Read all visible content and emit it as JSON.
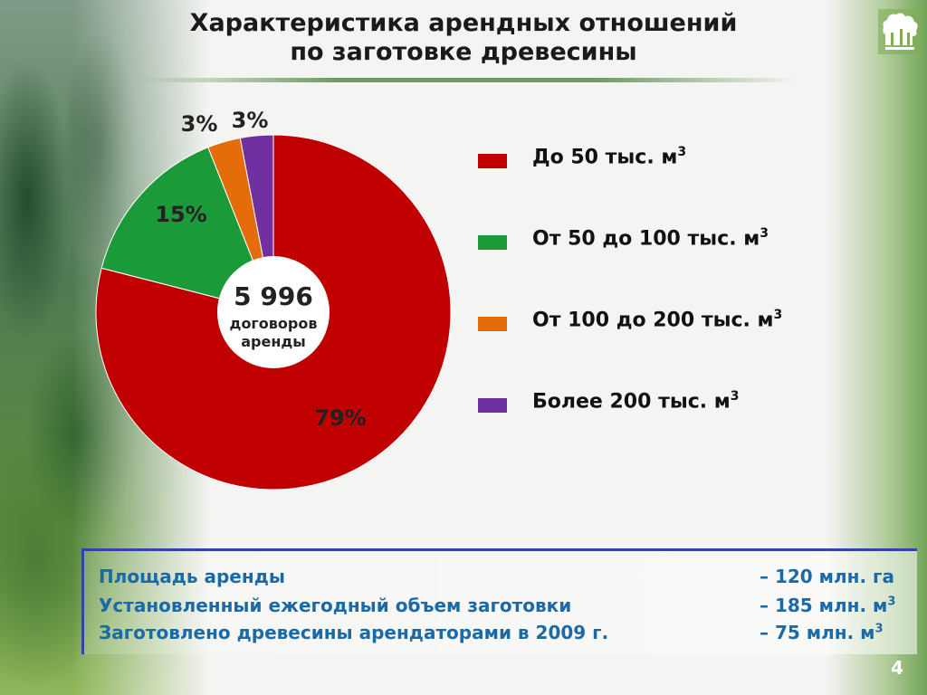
{
  "slide": {
    "title_line1": "Характеристика арендных отношений",
    "title_line2": "по заготовке древесины",
    "page_number": "4"
  },
  "chart_data": {
    "type": "pie",
    "values": [
      79,
      15,
      3,
      3
    ],
    "data_labels": [
      "79%",
      "15%",
      "3%",
      "3%"
    ],
    "colors": [
      "#c00000",
      "#1a9a38",
      "#e46c0a",
      "#7030a0"
    ],
    "center_number": "5 996",
    "center_line1": "договоров",
    "center_line2": "аренды"
  },
  "legend": [
    {
      "label": "До 50 тыс. м",
      "sup": "3",
      "color": "#c00000"
    },
    {
      "label": "От 50 до 100 тыс. м",
      "sup": "3",
      "color": "#1a9a38"
    },
    {
      "label": "От 100 до 200 тыс. м",
      "sup": "3",
      "color": "#e46c0a"
    },
    {
      "label": "Более 200 тыс. м",
      "sup": "3",
      "color": "#7030a0"
    }
  ],
  "info": [
    {
      "label": "Площадь аренды",
      "value": "– 120 млн. га",
      "sup": ""
    },
    {
      "label": "Установленный ежегодный объем заготовки",
      "value": "– 185 млн. м",
      "sup": "3"
    },
    {
      "label": "Заготовлено древесины арендаторами в 2009 г.",
      "value": "– 75 млн. м",
      "sup": "3"
    }
  ],
  "icons": {
    "logo": "forest-trees-logo"
  }
}
